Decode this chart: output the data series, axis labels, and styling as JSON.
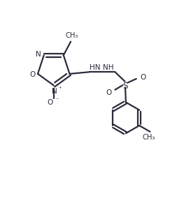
{
  "bg_color": "#ffffff",
  "line_color": "#2b2b3b",
  "line_width": 1.6,
  "figsize": [
    2.73,
    2.84
  ],
  "dpi": 100,
  "xlim": [
    0,
    10
  ],
  "ylim": [
    0,
    10.4
  ]
}
